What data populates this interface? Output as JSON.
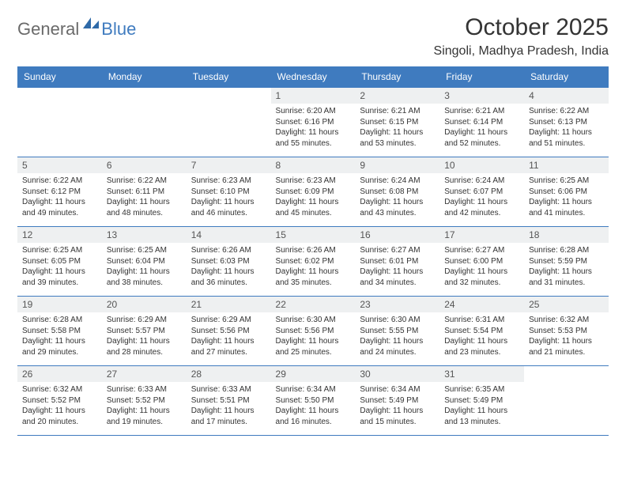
{
  "brand": {
    "general": "General",
    "blue": "Blue"
  },
  "header": {
    "title": "October 2025",
    "location": "Singoli, Madhya Pradesh, India"
  },
  "colors": {
    "accent": "#3f7bbf",
    "header_text": "#ffffff",
    "daynum_bg": "#eef0f1",
    "body_text": "#333333",
    "logo_gray": "#6a6a6a"
  },
  "calendar": {
    "day_names": [
      "Sunday",
      "Monday",
      "Tuesday",
      "Wednesday",
      "Thursday",
      "Friday",
      "Saturday"
    ],
    "weeks": [
      [
        {
          "day": "",
          "lines": []
        },
        {
          "day": "",
          "lines": []
        },
        {
          "day": "",
          "lines": []
        },
        {
          "day": "1",
          "lines": [
            "Sunrise: 6:20 AM",
            "Sunset: 6:16 PM",
            "Daylight: 11 hours and 55 minutes."
          ]
        },
        {
          "day": "2",
          "lines": [
            "Sunrise: 6:21 AM",
            "Sunset: 6:15 PM",
            "Daylight: 11 hours and 53 minutes."
          ]
        },
        {
          "day": "3",
          "lines": [
            "Sunrise: 6:21 AM",
            "Sunset: 6:14 PM",
            "Daylight: 11 hours and 52 minutes."
          ]
        },
        {
          "day": "4",
          "lines": [
            "Sunrise: 6:22 AM",
            "Sunset: 6:13 PM",
            "Daylight: 11 hours and 51 minutes."
          ]
        }
      ],
      [
        {
          "day": "5",
          "lines": [
            "Sunrise: 6:22 AM",
            "Sunset: 6:12 PM",
            "Daylight: 11 hours and 49 minutes."
          ]
        },
        {
          "day": "6",
          "lines": [
            "Sunrise: 6:22 AM",
            "Sunset: 6:11 PM",
            "Daylight: 11 hours and 48 minutes."
          ]
        },
        {
          "day": "7",
          "lines": [
            "Sunrise: 6:23 AM",
            "Sunset: 6:10 PM",
            "Daylight: 11 hours and 46 minutes."
          ]
        },
        {
          "day": "8",
          "lines": [
            "Sunrise: 6:23 AM",
            "Sunset: 6:09 PM",
            "Daylight: 11 hours and 45 minutes."
          ]
        },
        {
          "day": "9",
          "lines": [
            "Sunrise: 6:24 AM",
            "Sunset: 6:08 PM",
            "Daylight: 11 hours and 43 minutes."
          ]
        },
        {
          "day": "10",
          "lines": [
            "Sunrise: 6:24 AM",
            "Sunset: 6:07 PM",
            "Daylight: 11 hours and 42 minutes."
          ]
        },
        {
          "day": "11",
          "lines": [
            "Sunrise: 6:25 AM",
            "Sunset: 6:06 PM",
            "Daylight: 11 hours and 41 minutes."
          ]
        }
      ],
      [
        {
          "day": "12",
          "lines": [
            "Sunrise: 6:25 AM",
            "Sunset: 6:05 PM",
            "Daylight: 11 hours and 39 minutes."
          ]
        },
        {
          "day": "13",
          "lines": [
            "Sunrise: 6:25 AM",
            "Sunset: 6:04 PM",
            "Daylight: 11 hours and 38 minutes."
          ]
        },
        {
          "day": "14",
          "lines": [
            "Sunrise: 6:26 AM",
            "Sunset: 6:03 PM",
            "Daylight: 11 hours and 36 minutes."
          ]
        },
        {
          "day": "15",
          "lines": [
            "Sunrise: 6:26 AM",
            "Sunset: 6:02 PM",
            "Daylight: 11 hours and 35 minutes."
          ]
        },
        {
          "day": "16",
          "lines": [
            "Sunrise: 6:27 AM",
            "Sunset: 6:01 PM",
            "Daylight: 11 hours and 34 minutes."
          ]
        },
        {
          "day": "17",
          "lines": [
            "Sunrise: 6:27 AM",
            "Sunset: 6:00 PM",
            "Daylight: 11 hours and 32 minutes."
          ]
        },
        {
          "day": "18",
          "lines": [
            "Sunrise: 6:28 AM",
            "Sunset: 5:59 PM",
            "Daylight: 11 hours and 31 minutes."
          ]
        }
      ],
      [
        {
          "day": "19",
          "lines": [
            "Sunrise: 6:28 AM",
            "Sunset: 5:58 PM",
            "Daylight: 11 hours and 29 minutes."
          ]
        },
        {
          "day": "20",
          "lines": [
            "Sunrise: 6:29 AM",
            "Sunset: 5:57 PM",
            "Daylight: 11 hours and 28 minutes."
          ]
        },
        {
          "day": "21",
          "lines": [
            "Sunrise: 6:29 AM",
            "Sunset: 5:56 PM",
            "Daylight: 11 hours and 27 minutes."
          ]
        },
        {
          "day": "22",
          "lines": [
            "Sunrise: 6:30 AM",
            "Sunset: 5:56 PM",
            "Daylight: 11 hours and 25 minutes."
          ]
        },
        {
          "day": "23",
          "lines": [
            "Sunrise: 6:30 AM",
            "Sunset: 5:55 PM",
            "Daylight: 11 hours and 24 minutes."
          ]
        },
        {
          "day": "24",
          "lines": [
            "Sunrise: 6:31 AM",
            "Sunset: 5:54 PM",
            "Daylight: 11 hours and 23 minutes."
          ]
        },
        {
          "day": "25",
          "lines": [
            "Sunrise: 6:32 AM",
            "Sunset: 5:53 PM",
            "Daylight: 11 hours and 21 minutes."
          ]
        }
      ],
      [
        {
          "day": "26",
          "lines": [
            "Sunrise: 6:32 AM",
            "Sunset: 5:52 PM",
            "Daylight: 11 hours and 20 minutes."
          ]
        },
        {
          "day": "27",
          "lines": [
            "Sunrise: 6:33 AM",
            "Sunset: 5:52 PM",
            "Daylight: 11 hours and 19 minutes."
          ]
        },
        {
          "day": "28",
          "lines": [
            "Sunrise: 6:33 AM",
            "Sunset: 5:51 PM",
            "Daylight: 11 hours and 17 minutes."
          ]
        },
        {
          "day": "29",
          "lines": [
            "Sunrise: 6:34 AM",
            "Sunset: 5:50 PM",
            "Daylight: 11 hours and 16 minutes."
          ]
        },
        {
          "day": "30",
          "lines": [
            "Sunrise: 6:34 AM",
            "Sunset: 5:49 PM",
            "Daylight: 11 hours and 15 minutes."
          ]
        },
        {
          "day": "31",
          "lines": [
            "Sunrise: 6:35 AM",
            "Sunset: 5:49 PM",
            "Daylight: 11 hours and 13 minutes."
          ]
        },
        {
          "day": "",
          "lines": []
        }
      ]
    ]
  }
}
